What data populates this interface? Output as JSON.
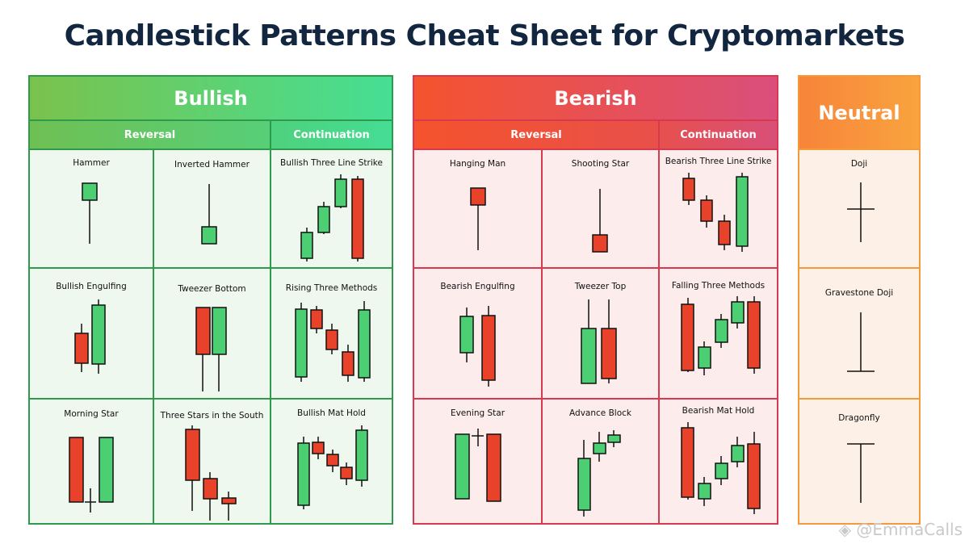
{
  "title": "Candlestick Patterns Cheat Sheet for Cryptomarkets",
  "colors": {
    "bull": "#4ccf72",
    "bear": "#e8432a",
    "outline": "#111111",
    "neutral": "#f39a3a"
  },
  "bullish": {
    "heading": "Bullish",
    "reversal_label": "Reversal",
    "continuation_label": "Continuation",
    "patterns": [
      "Hammer",
      "Inverted Hammer",
      "Bullish Three Line Strike",
      "Bullish Engulfing",
      "Tweezer Bottom",
      "Rising Three Methods",
      "Morning Star",
      "Three Stars in the South",
      "Bullish Mat Hold"
    ]
  },
  "bearish": {
    "heading": "Bearish",
    "reversal_label": "Reversal",
    "continuation_label": "Continuation",
    "patterns": [
      "Hanging Man",
      "Shooting Star",
      "Bearish Three Line Strike",
      "Bearish Engulfing",
      "Tweezer Top",
      "Falling Three Methods",
      "Evening Star",
      "Advance Block",
      "Bearish Mat Hold"
    ]
  },
  "neutral": {
    "heading": "Neutral",
    "patterns": [
      "Doji",
      "Gravestone Doji",
      "Dragonfly"
    ]
  },
  "watermark": "@EmmaCalls"
}
